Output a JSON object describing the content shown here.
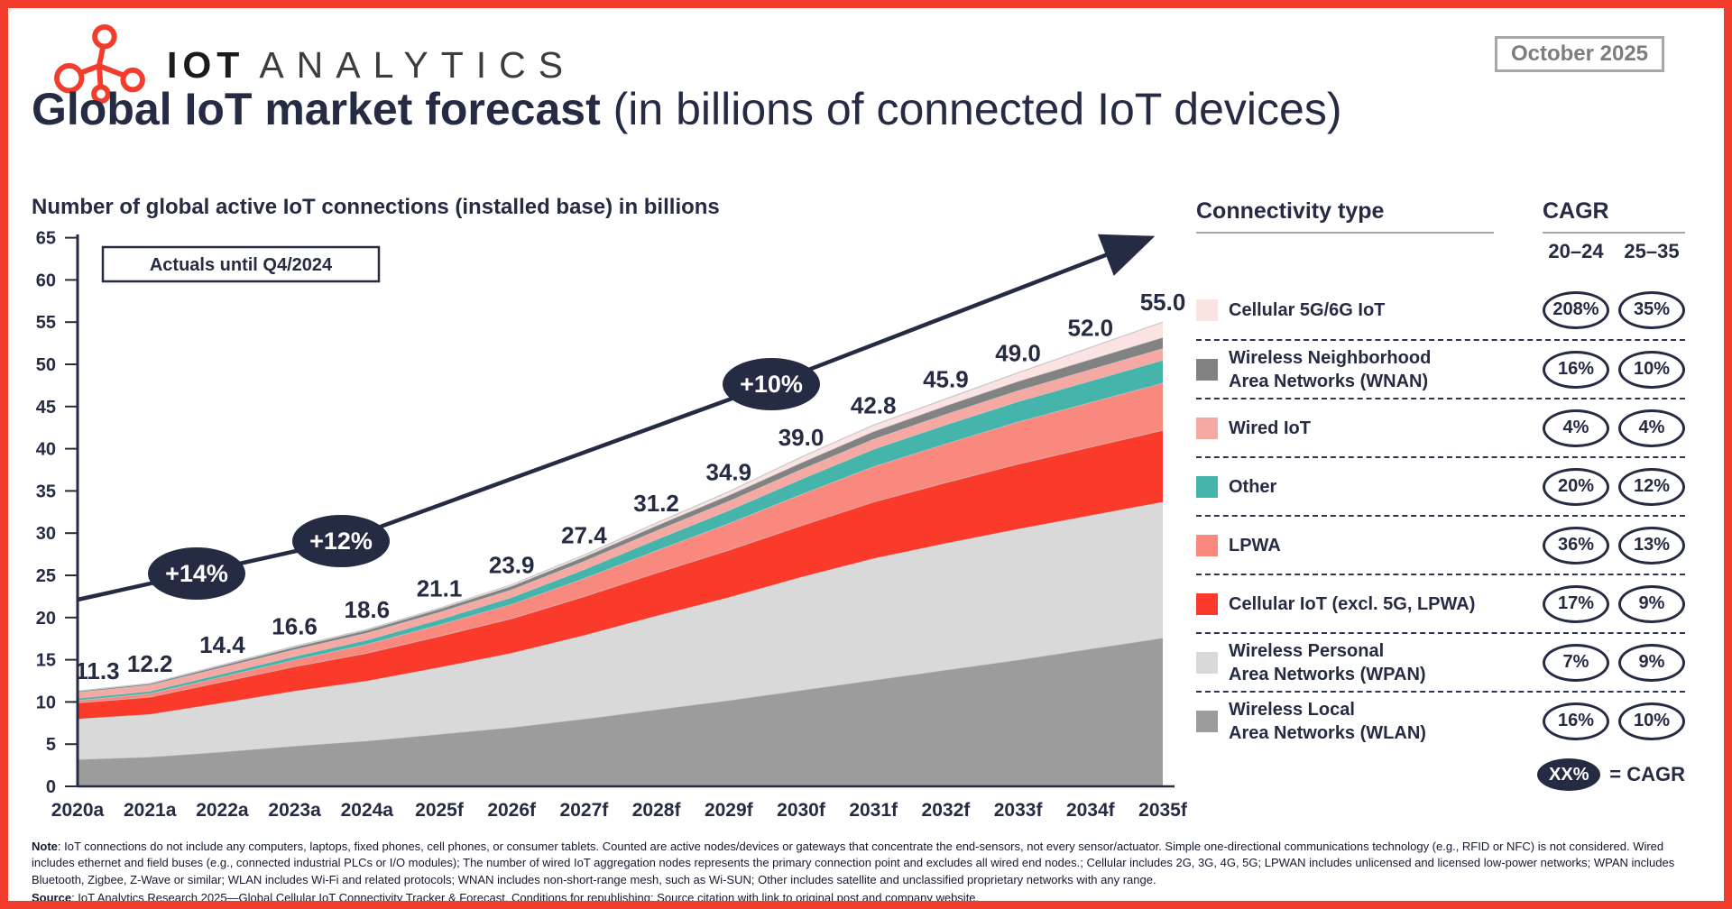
{
  "header": {
    "logo": {
      "brand_bold": "IOT",
      "brand_light": "ANALYTICS"
    },
    "date_badge": "October 2025"
  },
  "title": {
    "bold": "Global IoT market forecast",
    "regular": " (in billions of connected IoT devices)"
  },
  "chart_data": {
    "type": "area",
    "stacked": true,
    "title": "Number of global active IoT connections (installed base) in billions",
    "categories": [
      "2020a",
      "2021a",
      "2022a",
      "2023a",
      "2024a",
      "2025f",
      "2026f",
      "2027f",
      "2028f",
      "2029f",
      "2030f",
      "2031f",
      "2032f",
      "2033f",
      "2034f",
      "2035f"
    ],
    "totals": [
      11.3,
      12.2,
      14.4,
      16.6,
      18.6,
      21.1,
      23.9,
      27.4,
      31.2,
      34.9,
      39.0,
      42.8,
      45.9,
      49.0,
      52.0,
      55.0
    ],
    "ylim": [
      0,
      65
    ],
    "ytick_step": 5,
    "grid": false,
    "legend_position": "right",
    "series_note": "Per-series values estimated from stacked band heights; yearly totals are labeled on the chart.",
    "series": [
      {
        "name": "Wireless Local Area Networks (WLAN)",
        "color": "#9c9c9c",
        "values": [
          3.2,
          3.5,
          4.1,
          4.8,
          5.4,
          6.2,
          7.0,
          8.0,
          9.1,
          10.2,
          11.4,
          12.6,
          13.8,
          15.0,
          16.3,
          17.6
        ]
      },
      {
        "name": "Wireless Personal Area Networks (WPAN)",
        "color": "#d9d9d9",
        "values": [
          4.8,
          5.05,
          5.8,
          6.5,
          7.1,
          7.9,
          8.8,
          9.9,
          11.1,
          12.2,
          13.4,
          14.4,
          15.0,
          15.5,
          15.8,
          16.1
        ]
      },
      {
        "name": "Cellular IoT (excl. 5G, LPWA)",
        "color": "#fa3b2c",
        "values": [
          1.9,
          2.05,
          2.5,
          2.9,
          3.3,
          3.7,
          4.1,
          4.6,
          5.1,
          5.6,
          6.1,
          6.7,
          7.2,
          7.7,
          8.1,
          8.5
        ]
      },
      {
        "name": "LPWA",
        "color": "#f9897e",
        "values": [
          0.3,
          0.42,
          0.6,
          0.8,
          1.05,
          1.35,
          1.7,
          2.15,
          2.65,
          3.15,
          3.7,
          4.2,
          4.6,
          5.0,
          5.3,
          5.6
        ]
      },
      {
        "name": "Other",
        "color": "#45b4ab",
        "values": [
          0.25,
          0.28,
          0.35,
          0.42,
          0.5,
          0.62,
          0.8,
          1.05,
          1.3,
          1.55,
          1.8,
          2.05,
          2.25,
          2.4,
          2.55,
          2.7
        ]
      },
      {
        "name": "Wired IoT",
        "color": "#f5a9a2",
        "values": [
          0.7,
          0.72,
          0.76,
          0.8,
          0.84,
          0.88,
          0.92,
          0.98,
          1.05,
          1.1,
          1.15,
          1.2,
          1.25,
          1.3,
          1.35,
          1.4
        ]
      },
      {
        "name": "Wireless Neighborhood Area Networks (WNAN)",
        "color": "#828282",
        "values": [
          0.13,
          0.15,
          0.24,
          0.3,
          0.33,
          0.37,
          0.43,
          0.52,
          0.6,
          0.7,
          0.8,
          0.9,
          1.0,
          1.1,
          1.2,
          1.3
        ]
      },
      {
        "name": "Cellular 5G/6G IoT",
        "color": "#fbe3e1",
        "values": [
          0.02,
          0.03,
          0.05,
          0.08,
          0.08,
          0.08,
          0.15,
          0.2,
          0.3,
          0.4,
          0.65,
          0.75,
          0.8,
          1.0,
          1.4,
          1.8
        ]
      }
    ],
    "annotations": {
      "actuals_box": "Actuals until Q4/2024",
      "growth_badges": [
        "+14%",
        "+12%",
        "+10%"
      ]
    }
  },
  "legend": {
    "header": "Connectivity type",
    "cagr_header": "CAGR",
    "cagr_periods": [
      "20–24",
      "25–35"
    ],
    "rows": [
      {
        "label_lines": [
          "Cellular 5G/6G IoT"
        ],
        "color": "#fbe3e1",
        "cagr": [
          "208%",
          "35%"
        ]
      },
      {
        "label_lines": [
          "Wireless Neighborhood",
          "Area Networks (WNAN)"
        ],
        "color": "#828282",
        "cagr": [
          "16%",
          "10%"
        ]
      },
      {
        "label_lines": [
          "Wired IoT"
        ],
        "color": "#f5a9a2",
        "cagr": [
          "4%",
          "4%"
        ]
      },
      {
        "label_lines": [
          "Other"
        ],
        "color": "#45b4ab",
        "cagr": [
          "20%",
          "12%"
        ]
      },
      {
        "label_lines": [
          "LPWA"
        ],
        "color": "#f9897e",
        "cagr": [
          "36%",
          "13%"
        ]
      },
      {
        "label_lines": [
          "Cellular IoT (excl. 5G, LPWA)"
        ],
        "color": "#fa3b2c",
        "cagr": [
          "17%",
          "9%"
        ]
      },
      {
        "label_lines": [
          "Wireless Personal",
          "Area Networks (WPAN)"
        ],
        "color": "#d9d9d9",
        "cagr": [
          "7%",
          "9%"
        ]
      },
      {
        "label_lines": [
          "Wireless Local",
          "Area Networks (WLAN)"
        ],
        "color": "#9c9c9c",
        "cagr": [
          "16%",
          "10%"
        ]
      }
    ],
    "cagr_key": {
      "oval": "XX%",
      "text": "= CAGR"
    }
  },
  "footnote": {
    "note_label": "Note",
    "note_text": ": IoT connections do not include any computers, laptops, fixed phones, cell phones, or consumer tablets. Counted are active nodes/devices or gateways that concentrate the end-sensors, not every sensor/actuator. Simple one-directional communications technology (e.g., RFID or NFC) is not considered. Wired includes ethernet and field buses (e.g., connected industrial PLCs or I/O modules); The number of wired IoT aggregation nodes represents the primary connection point and excludes all wired end nodes.; Cellular includes 2G, 3G, 4G, 5G; LPWAN includes unlicensed and licensed low-power networks; WPAN includes Bluetooth, Zigbee, Z-Wave or similar; WLAN includes Wi-Fi and related protocols; WNAN includes non-short-range mesh, such as Wi-SUN; Other includes satellite and unclassified proprietary networks with any range.",
    "source_label": "Source",
    "source_text": ": IoT Analytics Research 2025—Global Cellular IoT Connectivity Tracker & Forecast. Conditions for republishing: Source citation with link to original post and company website."
  },
  "colors": {
    "accent_red": "#f23c2c",
    "navy": "#252b43",
    "gray_rule": "#a6a6a6"
  }
}
